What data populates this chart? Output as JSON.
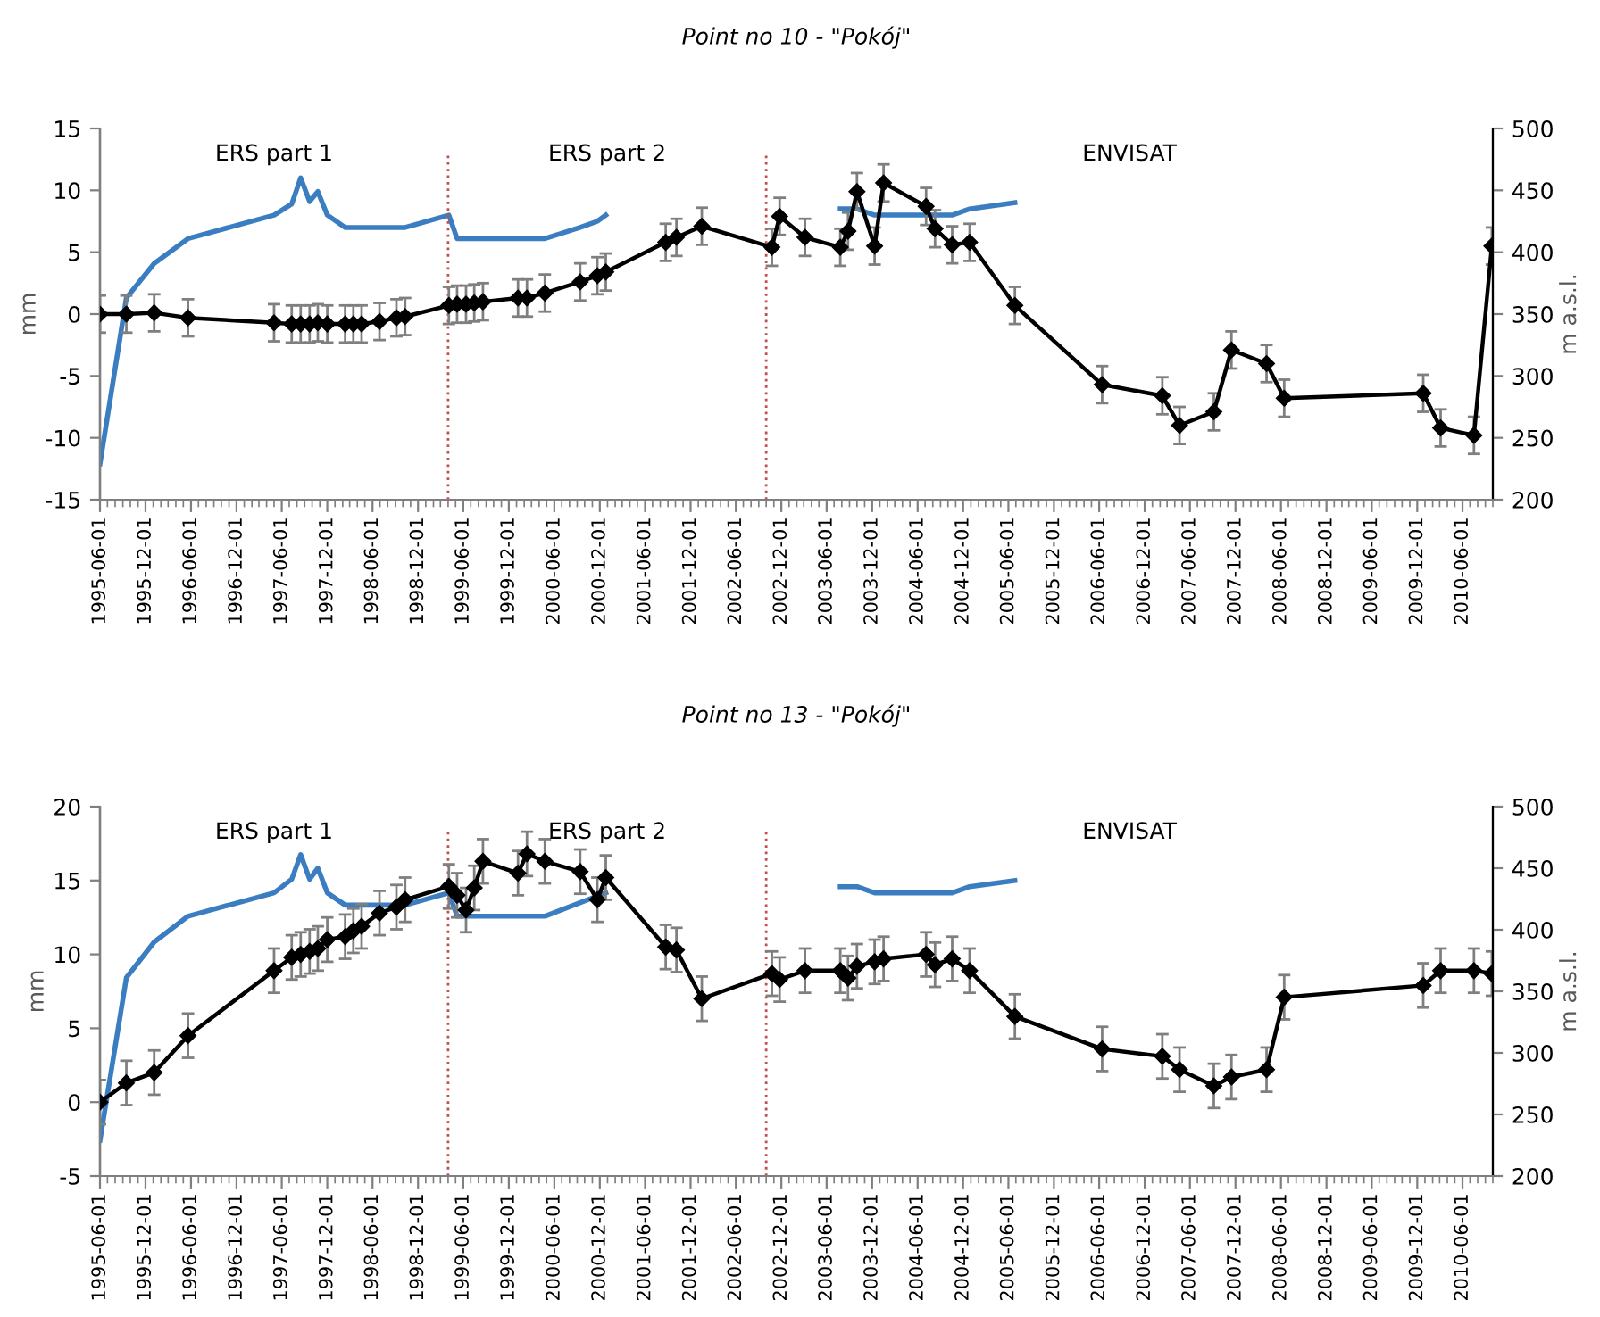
{
  "chart_data": [
    {
      "type": "line",
      "title": "Point no 10 - \"Pokój\"",
      "ylabel": "mm",
      "y2label": "m a.s.l.",
      "xlim": [
        "1995-06-01",
        "2010-10-01"
      ],
      "xticks": [
        "1995-06-01",
        "1995-12-01",
        "1996-06-01",
        "1996-12-01",
        "1997-06-01",
        "1997-12-01",
        "1998-06-01",
        "1998-12-01",
        "1999-06-01",
        "1999-12-01",
        "2000-06-01",
        "2000-12-01",
        "2001-06-01",
        "2001-12-01",
        "2002-06-01",
        "2002-12-01",
        "2003-06-01",
        "2003-12-01",
        "2004-06-01",
        "2004-12-01",
        "2005-06-01",
        "2005-12-01",
        "2006-06-01",
        "2006-12-01",
        "2007-06-01",
        "2007-12-01",
        "2008-06-01",
        "2008-12-01",
        "2009-06-01",
        "2009-12-01",
        "2010-06-01"
      ],
      "ylim": [
        -15,
        15
      ],
      "yticks": [
        -15,
        -10,
        -5,
        0,
        5,
        10,
        15
      ],
      "y2lim": [
        200,
        500
      ],
      "y2ticks": [
        200,
        250,
        300,
        350,
        400,
        450,
        500
      ],
      "grid": false,
      "legend": false,
      "annotations": [
        "ERS part 1",
        "ERS part 2",
        "ENVISAT"
      ],
      "ref_lines": [
        {
          "axis": "x",
          "value": "1999-04-01",
          "color": "#c0504d",
          "line_style": "dotted"
        },
        {
          "axis": "x",
          "value": "2002-10-01",
          "color": "#c0504d",
          "line_style": "dotted"
        }
      ],
      "series": [
        {
          "color": "#000000",
          "marker": "diamond",
          "line_style": "solid",
          "x": [
            "1995-06-01",
            "1995-09-15",
            "1996-01-05",
            "1996-05-20",
            "1997-05-01",
            "1997-07-11",
            "1997-08-16",
            "1997-09-21",
            "1997-10-24",
            "1997-12-01",
            "1998-02-11",
            "1998-03-16",
            "1998-04-18",
            "1998-06-29",
            "1998-09-05",
            "1998-10-10",
            "1999-04-04",
            "1999-05-07",
            "1999-06-12",
            "1999-07-15",
            "1999-08-19",
            "2000-01-07",
            "2000-02-12",
            "2000-04-24",
            "2000-09-13",
            "2000-11-21",
            "2000-12-25",
            "2001-08-23",
            "2001-10-05",
            "2002-01-15",
            "2002-10-24",
            "2002-11-24",
            "2003-03-06",
            "2003-07-26",
            "2003-08-26",
            "2003-10-01",
            "2003-12-11",
            "2004-01-16",
            "2004-07-05",
            "2004-08-10",
            "2004-10-18",
            "2004-12-27",
            "2005-06-27",
            "2006-06-13",
            "2007-02-10",
            "2007-04-20",
            "2007-09-05",
            "2007-11-15",
            "2008-04-04",
            "2008-06-14",
            "2009-12-25",
            "2010-03-05",
            "2010-07-17",
            "2010-09-27"
          ],
          "values": [
            0,
            0,
            0.1,
            -0.3,
            -0.7,
            -0.8,
            -0.8,
            -0.8,
            -0.7,
            -0.8,
            -0.8,
            -0.8,
            -0.8,
            -0.6,
            -0.3,
            -0.2,
            0.7,
            0.8,
            0.8,
            0.9,
            1.0,
            1.3,
            1.3,
            1.7,
            2.6,
            3.1,
            3.4,
            5.8,
            6.2,
            7.1,
            5.4,
            7.9,
            6.2,
            5.4,
            6.7,
            9.9,
            5.5,
            10.6,
            8.7,
            6.9,
            5.6,
            5.8,
            0.7,
            -5.7,
            -6.6,
            -9.0,
            -7.9,
            -2.9,
            -4.0,
            -6.8,
            -6.4,
            -9.2,
            -9.8,
            5.5
          ],
          "errors": [
            1.5,
            1.5,
            1.5,
            1.5,
            1.5,
            1.5,
            1.5,
            1.5,
            1.5,
            1.5,
            1.5,
            1.5,
            1.5,
            1.5,
            1.5,
            1.5,
            1.5,
            1.5,
            1.5,
            1.5,
            1.5,
            1.5,
            1.5,
            1.5,
            1.5,
            1.5,
            1.5,
            1.5,
            1.5,
            1.5,
            1.5,
            1.5,
            1.5,
            1.5,
            1.5,
            1.5,
            1.5,
            1.5,
            1.5,
            1.5,
            1.5,
            1.5,
            1.5,
            1.5,
            1.5,
            1.5,
            1.5,
            1.5,
            1.5,
            1.5,
            1.5,
            1.5,
            1.5,
            1.5
          ]
        },
        {
          "color": "#3a7dc0",
          "axis": "y2",
          "marker": "none",
          "line_style": "solid",
          "x": [
            "1995-06-01",
            "1995-09-15",
            "1996-01-05",
            "1996-05-20",
            "1997-05-01",
            "1997-07-11",
            "1997-08-16",
            "1997-09-21",
            "1997-10-24",
            "1997-12-01",
            "1998-02-11",
            "1998-10-10",
            "1999-04-04",
            "1999-05-07",
            "2000-04-24",
            "2000-09-13",
            "2000-11-21",
            "2000-12-25"
          ],
          "values": [
            229,
            363,
            391,
            411,
            430,
            439,
            460,
            441,
            449,
            430,
            420,
            420,
            430,
            411,
            411,
            420,
            425,
            430
          ]
        },
        {
          "color": "#3a7dc0",
          "axis": "y2",
          "marker": "none",
          "line_style": "solid",
          "x": [
            "2003-07-26",
            "2003-10-01",
            "2003-12-11",
            "2004-10-18",
            "2004-12-27",
            "2005-06-27"
          ],
          "values": [
            435,
            435,
            430,
            430,
            435,
            440
          ]
        }
      ]
    },
    {
      "type": "line",
      "title": "Point no 13 - \"Pokój\"",
      "ylabel": "mm",
      "y2label": "m a.s.l.",
      "xlim": [
        "1995-06-01",
        "2010-10-01"
      ],
      "xticks": [
        "1995-06-01",
        "1995-12-01",
        "1996-06-01",
        "1996-12-01",
        "1997-06-01",
        "1997-12-01",
        "1998-06-01",
        "1998-12-01",
        "1999-06-01",
        "1999-12-01",
        "2000-06-01",
        "2000-12-01",
        "2001-06-01",
        "2001-12-01",
        "2002-06-01",
        "2002-12-01",
        "2003-06-01",
        "2003-12-01",
        "2004-06-01",
        "2004-12-01",
        "2005-06-01",
        "2005-12-01",
        "2006-06-01",
        "2006-12-01",
        "2007-06-01",
        "2007-12-01",
        "2008-06-01",
        "2008-12-01",
        "2009-06-01",
        "2009-12-01",
        "2010-06-01"
      ],
      "ylim": [
        -5,
        20
      ],
      "yticks": [
        -5,
        0,
        5,
        10,
        15,
        20
      ],
      "y2lim": [
        200,
        500
      ],
      "y2ticks": [
        200,
        250,
        300,
        350,
        400,
        450,
        500
      ],
      "grid": false,
      "legend": false,
      "annotations": [
        "ERS part 1",
        "ERS part 2",
        "ENVISAT"
      ],
      "ref_lines": [
        {
          "axis": "x",
          "value": "1999-04-01",
          "color": "#c0504d",
          "line_style": "dotted"
        },
        {
          "axis": "x",
          "value": "2002-10-01",
          "color": "#c0504d",
          "line_style": "dotted"
        }
      ],
      "series": [
        {
          "color": "#000000",
          "marker": "diamond",
          "line_style": "solid",
          "x": [
            "1995-06-01",
            "1995-09-15",
            "1996-01-05",
            "1996-05-20",
            "1997-05-01",
            "1997-07-11",
            "1997-08-16",
            "1997-09-21",
            "1997-10-24",
            "1997-12-01",
            "1998-02-11",
            "1998-03-16",
            "1998-04-18",
            "1998-06-29",
            "1998-09-05",
            "1998-10-10",
            "1999-04-04",
            "1999-05-07",
            "1999-06-12",
            "1999-07-15",
            "1999-08-19",
            "2000-01-07",
            "2000-02-12",
            "2000-04-24",
            "2000-09-13",
            "2000-11-21",
            "2000-12-25",
            "2001-08-23",
            "2001-10-05",
            "2002-01-15",
            "2002-10-24",
            "2002-11-24",
            "2003-03-06",
            "2003-07-26",
            "2003-08-26",
            "2003-10-01",
            "2003-12-11",
            "2004-01-16",
            "2004-07-05",
            "2004-08-10",
            "2004-10-18",
            "2004-12-27",
            "2005-06-27",
            "2006-06-13",
            "2007-02-10",
            "2007-04-20",
            "2007-09-05",
            "2007-11-15",
            "2008-04-04",
            "2008-06-14",
            "2009-12-25",
            "2010-03-05",
            "2010-07-17",
            "2010-09-27"
          ],
          "values": [
            0,
            1.3,
            2.0,
            4.5,
            8.9,
            9.8,
            10.0,
            10.2,
            10.4,
            11.0,
            11.2,
            11.6,
            11.9,
            12.8,
            13.2,
            13.7,
            14.6,
            14.0,
            13.0,
            14.5,
            16.3,
            15.5,
            16.8,
            16.3,
            15.6,
            13.7,
            15.2,
            10.5,
            10.3,
            7.0,
            8.7,
            8.3,
            8.9,
            8.9,
            8.4,
            9.2,
            9.5,
            9.7,
            10.0,
            9.3,
            9.7,
            8.9,
            5.8,
            3.6,
            3.1,
            2.2,
            1.1,
            1.7,
            2.2,
            7.1,
            7.9,
            8.9,
            8.9,
            8.7
          ],
          "errors": [
            1.5,
            1.5,
            1.5,
            1.5,
            1.5,
            1.5,
            1.5,
            1.5,
            1.5,
            1.5,
            1.5,
            1.5,
            1.5,
            1.5,
            1.5,
            1.5,
            1.5,
            1.5,
            1.5,
            1.5,
            1.5,
            1.5,
            1.5,
            1.5,
            1.5,
            1.5,
            1.5,
            1.5,
            1.5,
            1.5,
            1.5,
            1.5,
            1.5,
            1.5,
            1.5,
            1.5,
            1.5,
            1.5,
            1.5,
            1.5,
            1.5,
            1.5,
            1.5,
            1.5,
            1.5,
            1.5,
            1.5,
            1.5,
            1.5,
            1.5,
            1.5,
            1.5,
            1.5,
            1.5
          ]
        },
        {
          "color": "#3a7dc0",
          "axis": "y2",
          "marker": "none",
          "line_style": "solid",
          "x": [
            "1995-06-01",
            "1995-09-15",
            "1996-01-05",
            "1996-05-20",
            "1997-05-01",
            "1997-07-11",
            "1997-08-16",
            "1997-09-21",
            "1997-10-24",
            "1997-12-01",
            "1998-02-11",
            "1998-10-10",
            "1999-04-04",
            "1999-05-07",
            "2000-04-24",
            "2000-12-25"
          ],
          "values": [
            229,
            361,
            390,
            411,
            430,
            441,
            461,
            441,
            450,
            430,
            420,
            420,
            430,
            411,
            411,
            430
          ]
        },
        {
          "color": "#3a7dc0",
          "axis": "y2",
          "marker": "none",
          "line_style": "solid",
          "x": [
            "2003-07-26",
            "2003-10-01",
            "2003-12-11",
            "2004-10-18",
            "2004-12-27",
            "2005-06-27"
          ],
          "values": [
            435,
            435,
            430,
            430,
            435,
            440
          ]
        }
      ]
    }
  ]
}
